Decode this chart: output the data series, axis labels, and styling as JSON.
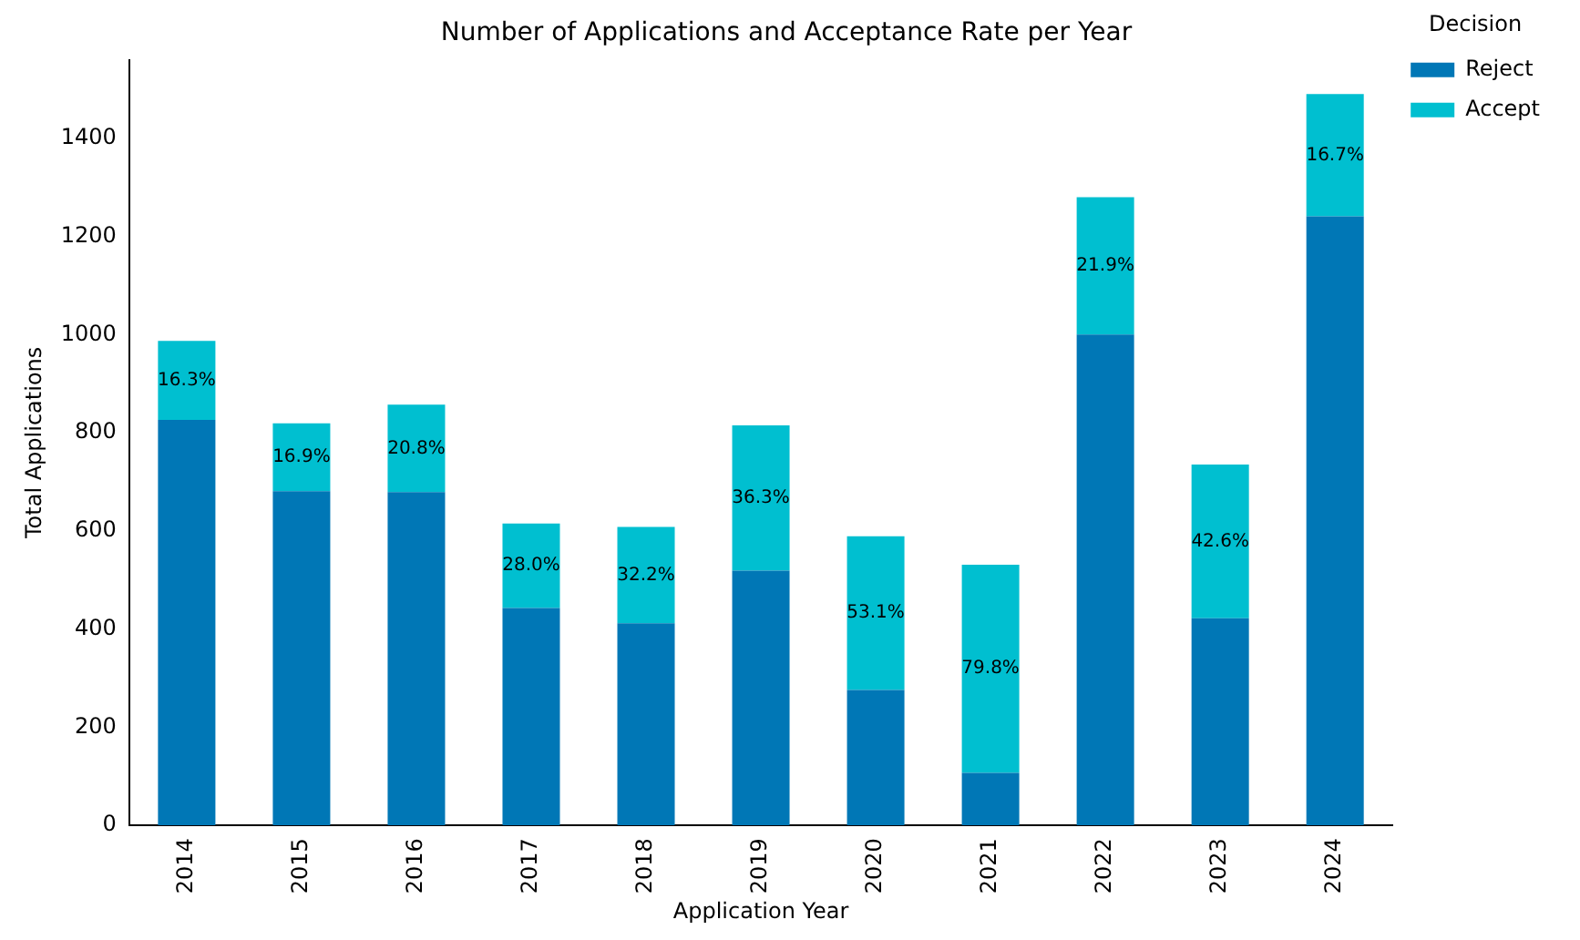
{
  "chart_data": {
    "type": "bar",
    "title": "Number of Applications and Acceptance Rate per Year",
    "xlabel": "Application Year",
    "ylabel": "Total Applications",
    "legend_title": "Decision",
    "categories": [
      "2014",
      "2015",
      "2016",
      "2017",
      "2018",
      "2019",
      "2020",
      "2021",
      "2022",
      "2023",
      "2024"
    ],
    "stacked": true,
    "series": [
      {
        "name": "Reject",
        "color": "#0077b6",
        "values": [
          826,
          681,
          679,
          443,
          412,
          519,
          276,
          107,
          1000,
          422,
          1241
        ]
      },
      {
        "name": "Accept",
        "color": "#00bfd0",
        "values": [
          161,
          138,
          178,
          172,
          196,
          296,
          313,
          424,
          280,
          313,
          249
        ]
      }
    ],
    "annotations": [
      "16.3%",
      "16.9%",
      "20.8%",
      "28.0%",
      "32.2%",
      "36.3%",
      "53.1%",
      "79.8%",
      "21.9%",
      "42.6%",
      "16.7%"
    ],
    "ylim": [
      0,
      1560
    ],
    "yticks": [
      0,
      200,
      400,
      600,
      800,
      1000,
      1200,
      1400
    ],
    "grid": false,
    "legend": "top right"
  }
}
